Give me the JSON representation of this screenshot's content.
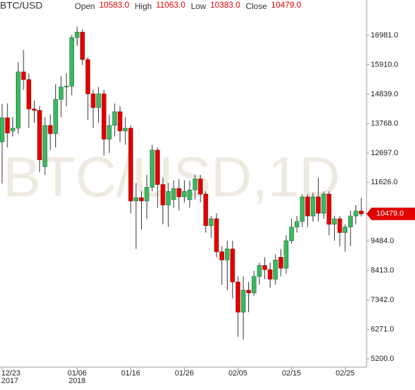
{
  "chart_data": {
    "type": "candlestick",
    "title": "BTC/USD",
    "watermark": "BTC/USD,1D",
    "header": [
      {
        "name": "Open",
        "value": 10583,
        "label": "10583.0"
      },
      {
        "name": "High",
        "value": 11063,
        "label": "11063.0"
      },
      {
        "name": "Low",
        "value": 10383,
        "label": "10383.0"
      },
      {
        "name": "Close",
        "value": 10479,
        "label": "10479.0"
      }
    ],
    "last_price": {
      "value": 10479,
      "label": "10479.0"
    },
    "up_color": "#3cb860",
    "down_color": "#e00000",
    "categories": [
      "12/23",
      null,
      null,
      null,
      null,
      null,
      null,
      null,
      null,
      null,
      null,
      null,
      null,
      null,
      "01/06",
      null,
      null,
      null,
      null,
      null,
      null,
      null,
      null,
      null,
      "01/16",
      null,
      null,
      null,
      null,
      null,
      null,
      null,
      null,
      null,
      "01/26",
      null,
      null,
      null,
      null,
      null,
      null,
      null,
      null,
      null,
      "02/05",
      null,
      null,
      null,
      null,
      null,
      null,
      null,
      null,
      null,
      "02/15",
      null,
      null,
      null,
      null,
      null,
      null,
      null,
      null,
      null,
      "02/25",
      null,
      null,
      null
    ],
    "category_years": [
      "2017",
      null,
      null,
      null,
      null,
      null,
      null,
      null,
      null,
      null,
      null,
      null,
      null,
      null,
      "2018",
      null,
      null,
      null,
      null,
      null,
      null,
      null,
      null,
      null,
      null,
      null,
      null,
      null,
      null,
      null,
      null,
      null,
      null,
      null,
      null,
      null,
      null,
      null,
      null,
      null,
      null,
      null,
      null,
      null,
      null,
      null,
      null,
      null,
      null,
      null,
      null,
      null,
      null,
      null,
      null,
      null,
      null,
      null,
      null,
      null,
      null,
      null,
      null,
      null,
      null,
      null,
      null,
      null
    ],
    "open": [
      13100,
      13980,
      13500,
      13600,
      15650,
      15370,
      14300,
      14250,
      12200,
      13700,
      13400,
      14650,
      15100,
      15130,
      16900,
      17100,
      16100,
      14850,
      14350,
      14850,
      13200,
      13700,
      14200,
      13500,
      13600,
      10950,
      11070,
      10950,
      11450,
      12800,
      11550,
      10800,
      11000,
      11400,
      11100,
      11000,
      11350,
      11750,
      11200,
      10050,
      10300,
      9100,
      8800,
      9200,
      8000,
      6900,
      7700,
      7600,
      8200,
      8600,
      8450,
      8100,
      8900,
      8500,
      9500,
      10000,
      10200,
      11100,
      10400,
      11100,
      10500,
      11200,
      10100,
      10300,
      9800,
      10000,
      10400,
      10583
    ],
    "high": [
      14484,
      14500,
      14000,
      16000,
      16450,
      15600,
      14600,
      14400,
      14000,
      14100,
      15200,
      15500,
      15600,
      17000,
      17300,
      17200,
      16200,
      15000,
      15100,
      15000,
      14100,
      14500,
      14400,
      14000,
      13700,
      11600,
      11300,
      11900,
      13000,
      12900,
      11800,
      11600,
      11700,
      11750,
      11700,
      11700,
      11900,
      11900,
      11300,
      10400,
      10500,
      9300,
      9500,
      9500,
      8200,
      8200,
      8000,
      8400,
      8700,
      8900,
      8700,
      9000,
      9200,
      9700,
      10300,
      10400,
      11200,
      11200,
      11250,
      11800,
      11300,
      11300,
      10400,
      10400,
      10100,
      10600,
      10800,
      11063
    ],
    "low": [
      11583,
      12900,
      13300,
      13400,
      15000,
      13600,
      13800,
      12000,
      11900,
      12800,
      12900,
      14000,
      14400,
      14800,
      16600,
      15900,
      13900,
      13600,
      13800,
      12600,
      12700,
      13300,
      13100,
      13000,
      10500,
      9200,
      9900,
      10300,
      11300,
      10700,
      10100,
      10000,
      10700,
      10600,
      10900,
      10700,
      11000,
      10900,
      9800,
      9600,
      8900,
      7900,
      7700,
      7400,
      6000,
      5900,
      6900,
      7500,
      7900,
      8100,
      7800,
      7900,
      8200,
      8300,
      9400,
      9800,
      10000,
      10000,
      10200,
      10200,
      10300,
      9700,
      9500,
      9300,
      9100,
      9300,
      10100,
      10383
    ],
    "close": [
      13980,
      13425,
      13600,
      15650,
      15370,
      14300,
      14250,
      12450,
      13700,
      13400,
      14650,
      15100,
      15130,
      16900,
      17100,
      16100,
      14850,
      14350,
      14850,
      13200,
      13700,
      14200,
      13500,
      13600,
      10950,
      11070,
      10950,
      11450,
      12800,
      11550,
      10800,
      11300,
      11400,
      11100,
      11300,
      11350,
      11750,
      11200,
      10050,
      10300,
      9100,
      8800,
      9200,
      8000,
      6900,
      7700,
      7600,
      8200,
      8600,
      8450,
      8100,
      8800,
      8500,
      9500,
      10000,
      10200,
      11100,
      10400,
      11100,
      10500,
      11200,
      10100,
      10300,
      9800,
      10000,
      10400,
      10583,
      10479
    ],
    "ylim": [
      4897,
      18269
    ],
    "yticks": [
      {
        "value": 5200,
        "label": "5200.0"
      },
      {
        "value": 6271,
        "label": "6271.0"
      },
      {
        "value": 7342,
        "label": "7342.0"
      },
      {
        "value": 8413,
        "label": "8413.0"
      },
      {
        "value": 9484,
        "label": "9484.0"
      },
      {
        "value": 11626,
        "label": "11626.0"
      },
      {
        "value": 12697,
        "label": "12697.0"
      },
      {
        "value": 13768,
        "label": "13768.0"
      },
      {
        "value": 14839,
        "label": "14839.0"
      },
      {
        "value": 15910,
        "label": "15910.0"
      },
      {
        "value": 16981,
        "label": "16981.0"
      }
    ]
  }
}
